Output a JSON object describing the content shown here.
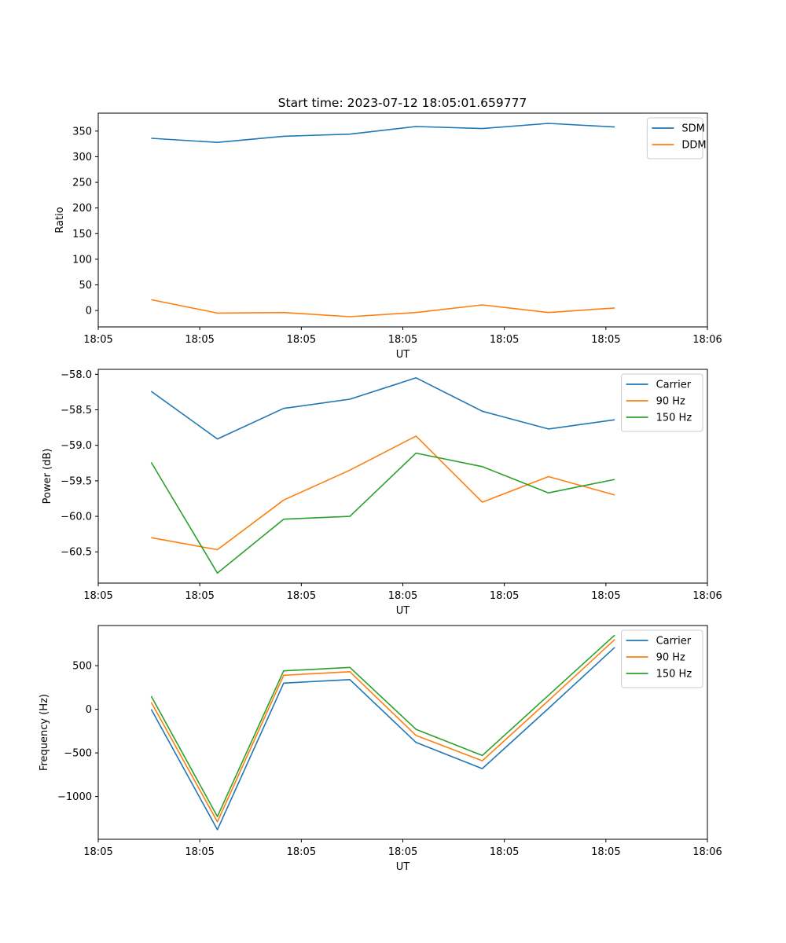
{
  "title": "Start time: 2023-07-12 18:05:01.659777",
  "chart_data": [
    {
      "type": "line",
      "title": "Start time: 2023-07-12 18:05:01.659777",
      "xlabel": "UT",
      "ylabel": "Ratio",
      "x": [
        1,
        2,
        3,
        4,
        5,
        6,
        7,
        8
      ],
      "xlim": [
        0.2,
        9.4
      ],
      "xticks": [
        {
          "v": 0.2,
          "label": "18:05"
        },
        {
          "v": 1.733,
          "label": "18:05"
        },
        {
          "v": 3.267,
          "label": "18:05"
        },
        {
          "v": 4.8,
          "label": "18:05"
        },
        {
          "v": 6.333,
          "label": "18:05"
        },
        {
          "v": 7.867,
          "label": "18:05"
        },
        {
          "v": 9.4,
          "label": "18:06"
        }
      ],
      "ylim": [
        -32,
        385
      ],
      "yticks": [
        0,
        50,
        100,
        150,
        200,
        250,
        300,
        350
      ],
      "legend": "top-right",
      "series": [
        {
          "name": "SDM",
          "color": "#1f77b4",
          "values": [
            336,
            328,
            340,
            344,
            359,
            355,
            365,
            358
          ]
        },
        {
          "name": "DDM",
          "color": "#ff7f0e",
          "values": [
            21,
            -5,
            -4,
            -12,
            -4,
            11,
            -4,
            5
          ]
        }
      ]
    },
    {
      "type": "line",
      "xlabel": "UT",
      "ylabel": "Power (dB)",
      "x": [
        1,
        2,
        3,
        4,
        5,
        6,
        7,
        8
      ],
      "xlim": [
        0.2,
        9.4
      ],
      "xticks": [
        {
          "v": 0.2,
          "label": "18:05"
        },
        {
          "v": 1.733,
          "label": "18:05"
        },
        {
          "v": 3.267,
          "label": "18:05"
        },
        {
          "v": 4.8,
          "label": "18:05"
        },
        {
          "v": 6.333,
          "label": "18:05"
        },
        {
          "v": 7.867,
          "label": "18:05"
        },
        {
          "v": 9.4,
          "label": "18:06"
        }
      ],
      "ylim": [
        -60.94,
        -57.93
      ],
      "yticks": [
        -60.5,
        -60.0,
        -59.5,
        -59.0,
        -58.5,
        -58.0
      ],
      "legend": "top-right",
      "series": [
        {
          "name": "Carrier",
          "color": "#1f77b4",
          "values": [
            -58.24,
            -58.91,
            -58.48,
            -58.35,
            -58.05,
            -58.52,
            -58.77,
            -58.64
          ]
        },
        {
          "name": "90 Hz",
          "color": "#ff7f0e",
          "values": [
            -60.3,
            -60.47,
            -59.77,
            -59.35,
            -58.87,
            -59.8,
            -59.44,
            -59.7
          ]
        },
        {
          "name": "150 Hz",
          "color": "#2ca02c",
          "values": [
            -59.24,
            -60.8,
            -60.04,
            -60.0,
            -59.11,
            -59.3,
            -59.67,
            -59.48
          ]
        }
      ]
    },
    {
      "type": "line",
      "xlabel": "UT",
      "ylabel": "Frequency (Hz)",
      "x": [
        1,
        2,
        3,
        4,
        5,
        6,
        7,
        8
      ],
      "xlim": [
        0.2,
        9.4
      ],
      "xticks": [
        {
          "v": 0.2,
          "label": "18:05"
        },
        {
          "v": 1.733,
          "label": "18:05"
        },
        {
          "v": 3.267,
          "label": "18:05"
        },
        {
          "v": 4.8,
          "label": "18:05"
        },
        {
          "v": 6.333,
          "label": "18:05"
        },
        {
          "v": 7.867,
          "label": "18:05"
        },
        {
          "v": 9.4,
          "label": "18:06"
        }
      ],
      "ylim": [
        -1490,
        960
      ],
      "yticks": [
        -1000,
        -500,
        0,
        500
      ],
      "legend": "top-right",
      "series": [
        {
          "name": "Carrier",
          "color": "#1f77b4",
          "values": [
            0,
            -1380,
            300,
            340,
            -380,
            -680,
            10,
            710
          ]
        },
        {
          "name": "90 Hz",
          "color": "#ff7f0e",
          "values": [
            80,
            -1290,
            390,
            430,
            -300,
            -590,
            100,
            800
          ]
        },
        {
          "name": "150 Hz",
          "color": "#2ca02c",
          "values": [
            150,
            -1230,
            440,
            480,
            -230,
            -530,
            160,
            850
          ]
        }
      ]
    }
  ]
}
